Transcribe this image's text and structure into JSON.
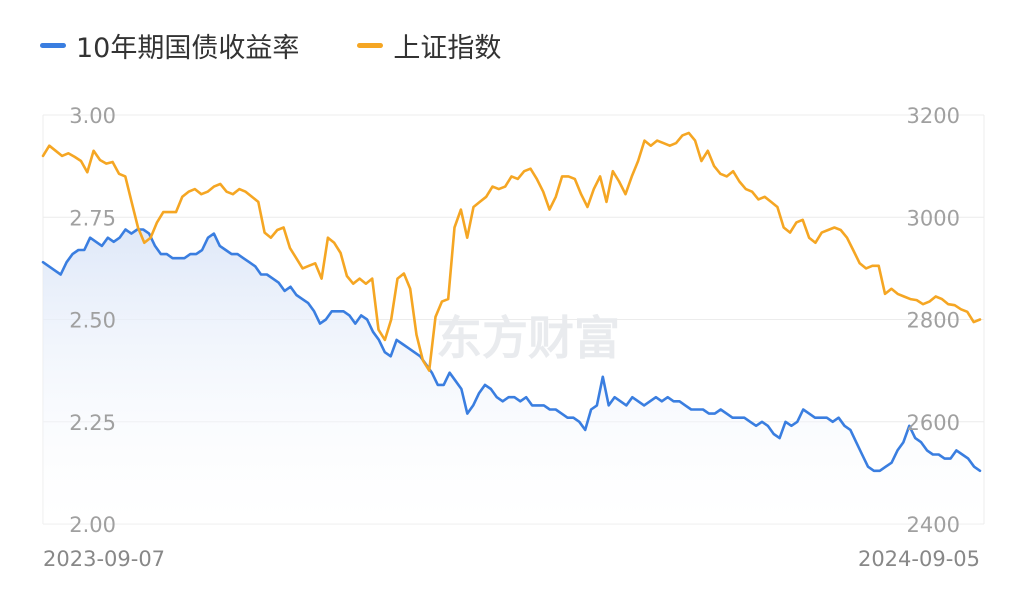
{
  "legend": {
    "bond_label": "10年期国债收益率",
    "index_label": "上证指数"
  },
  "watermark": "东方财富",
  "colors": {
    "bond": "#3a7ee0",
    "index": "#f5a623",
    "grid": "#ececec",
    "tick": "#a0a0a0",
    "area_top": "#e2ebfa"
  },
  "chart_data": {
    "type": "line",
    "x_start_label": "2023-09-07",
    "x_end_label": "2024-09-05",
    "grid": true,
    "legend_position": "top-left",
    "left_axis": {
      "ylim": [
        2.0,
        3.0
      ],
      "ticks": [
        "3.00",
        "2.75",
        "2.50",
        "2.25",
        "2.00"
      ]
    },
    "right_axis": {
      "ylim": [
        2400,
        3200
      ],
      "ticks": [
        "3200",
        "3000",
        "2800",
        "2600",
        "2400"
      ]
    },
    "series": [
      {
        "name": "10年期国债收益率",
        "axis": "left",
        "area_fill": true,
        "values": [
          2.64,
          2.63,
          2.62,
          2.61,
          2.64,
          2.66,
          2.67,
          2.67,
          2.7,
          2.69,
          2.68,
          2.7,
          2.69,
          2.7,
          2.72,
          2.71,
          2.72,
          2.72,
          2.71,
          2.68,
          2.66,
          2.66,
          2.65,
          2.65,
          2.65,
          2.66,
          2.66,
          2.67,
          2.7,
          2.71,
          2.68,
          2.67,
          2.66,
          2.66,
          2.65,
          2.64,
          2.63,
          2.61,
          2.61,
          2.6,
          2.59,
          2.57,
          2.58,
          2.56,
          2.55,
          2.54,
          2.52,
          2.49,
          2.5,
          2.52,
          2.52,
          2.52,
          2.51,
          2.49,
          2.51,
          2.5,
          2.47,
          2.45,
          2.42,
          2.41,
          2.45,
          2.44,
          2.43,
          2.42,
          2.41,
          2.39,
          2.37,
          2.34,
          2.34,
          2.37,
          2.35,
          2.33,
          2.27,
          2.29,
          2.32,
          2.34,
          2.33,
          2.31,
          2.3,
          2.31,
          2.31,
          2.3,
          2.31,
          2.29,
          2.29,
          2.29,
          2.28,
          2.28,
          2.27,
          2.26,
          2.26,
          2.25,
          2.23,
          2.28,
          2.29,
          2.36,
          2.29,
          2.31,
          2.3,
          2.29,
          2.31,
          2.3,
          2.29,
          2.3,
          2.31,
          2.3,
          2.31,
          2.3,
          2.3,
          2.29,
          2.28,
          2.28,
          2.28,
          2.27,
          2.27,
          2.28,
          2.27,
          2.26,
          2.26,
          2.26,
          2.25,
          2.24,
          2.25,
          2.24,
          2.22,
          2.21,
          2.25,
          2.24,
          2.25,
          2.28,
          2.27,
          2.26,
          2.26,
          2.26,
          2.25,
          2.26,
          2.24,
          2.23,
          2.2,
          2.17,
          2.14,
          2.13,
          2.13,
          2.14,
          2.15,
          2.18,
          2.2,
          2.24,
          2.21,
          2.2,
          2.18,
          2.17,
          2.17,
          2.16,
          2.16,
          2.18,
          2.17,
          2.16,
          2.14,
          2.13
        ]
      },
      {
        "name": "上证指数",
        "axis": "right",
        "area_fill": false,
        "values": [
          3120,
          3140,
          3130,
          3120,
          3125,
          3118,
          3110,
          3088,
          3130,
          3112,
          3105,
          3108,
          3085,
          3080,
          3030,
          2980,
          2950,
          2960,
          2990,
          3010,
          3010,
          3010,
          3040,
          3050,
          3055,
          3045,
          3050,
          3060,
          3065,
          3050,
          3045,
          3055,
          3050,
          3040,
          3030,
          2970,
          2960,
          2975,
          2980,
          2940,
          2920,
          2900,
          2905,
          2910,
          2880,
          2960,
          2950,
          2930,
          2885,
          2870,
          2880,
          2870,
          2880,
          2780,
          2760,
          2800,
          2880,
          2890,
          2860,
          2770,
          2720,
          2700,
          2805,
          2835,
          2840,
          2980,
          3015,
          2960,
          3020,
          3030,
          3040,
          3060,
          3055,
          3060,
          3080,
          3075,
          3090,
          3095,
          3075,
          3050,
          3015,
          3040,
          3080,
          3080,
          3075,
          3045,
          3020,
          3055,
          3080,
          3030,
          3090,
          3070,
          3045,
          3080,
          3110,
          3150,
          3140,
          3150,
          3145,
          3140,
          3145,
          3160,
          3165,
          3150,
          3110,
          3130,
          3100,
          3085,
          3080,
          3090,
          3070,
          3055,
          3050,
          3035,
          3040,
          3030,
          3020,
          2980,
          2970,
          2990,
          2995,
          2960,
          2950,
          2970,
          2975,
          2980,
          2975,
          2960,
          2935,
          2910,
          2900,
          2905,
          2905,
          2850,
          2860,
          2850,
          2845,
          2840,
          2838,
          2830,
          2835,
          2845,
          2840,
          2830,
          2828,
          2820,
          2815,
          2795,
          2800
        ]
      }
    ]
  }
}
